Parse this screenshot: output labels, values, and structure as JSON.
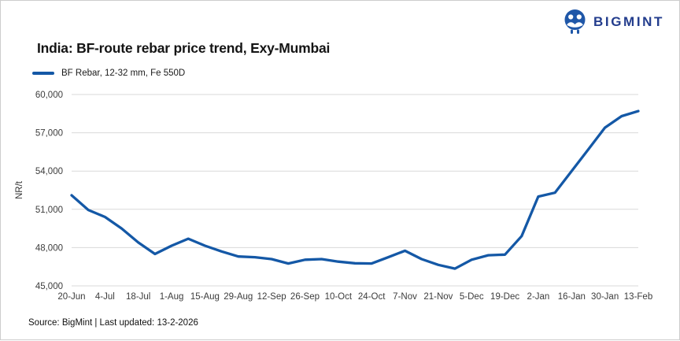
{
  "logo": {
    "text": "BIGMINT",
    "text_color": "#233d8d",
    "icon_color": "#1f57a8",
    "icon_name": "bigmint-emblem"
  },
  "header": {
    "title": "India: BF-route rebar price trend, Exy-Mumbai"
  },
  "legend": {
    "label": "BF Rebar, 12-32 mm, Fe 550D",
    "swatch_color": "#1458a6"
  },
  "footer": {
    "source_text": "Source: BigMint | Last updated: 13-2-2026"
  },
  "chart_data": {
    "type": "line",
    "title": "India: BF-route rebar price trend, Exy-Mumbai",
    "ylabel": "NR/t",
    "xlabel": "",
    "ylim": [
      45000,
      60000
    ],
    "y_ticks": [
      45000,
      48000,
      51000,
      54000,
      57000,
      60000
    ],
    "grid": "horizontal",
    "grid_color": "#d9d9d9",
    "axis_text_color": "#3c3c3c",
    "legend_position": "top-left",
    "x_tick_labels": [
      "20-Jun",
      "4-Jul",
      "18-Jul",
      "1-Aug",
      "15-Aug",
      "29-Aug",
      "12-Sep",
      "26-Sep",
      "10-Oct",
      "24-Oct",
      "7-Nov",
      "21-Nov",
      "5-Dec",
      "19-Dec",
      "2-Jan",
      "16-Jan",
      "30-Jan",
      "13-Feb"
    ],
    "series": [
      {
        "name": "BF Rebar, 12-32 mm, Fe 550D",
        "color": "#1458a6",
        "x": [
          "20-Jun",
          "27-Jun",
          "4-Jul",
          "11-Jul",
          "18-Jul",
          "25-Jul",
          "1-Aug",
          "8-Aug",
          "15-Aug",
          "22-Aug",
          "29-Aug",
          "5-Sep",
          "12-Sep",
          "19-Sep",
          "26-Sep",
          "3-Oct",
          "10-Oct",
          "17-Oct",
          "24-Oct",
          "31-Oct",
          "7-Nov",
          "14-Nov",
          "21-Nov",
          "28-Nov",
          "5-Dec",
          "12-Dec",
          "19-Dec",
          "26-Dec",
          "2-Jan",
          "9-Jan",
          "16-Jan",
          "23-Jan",
          "30-Jan",
          "6-Feb",
          "13-Feb"
        ],
        "values": [
          52100,
          50950,
          50400,
          49500,
          48400,
          47500,
          48150,
          48700,
          48150,
          47700,
          47300,
          47250,
          47100,
          46750,
          47050,
          47100,
          46900,
          46770,
          46750,
          47250,
          47750,
          47100,
          46650,
          46350,
          47050,
          47400,
          47450,
          48900,
          52000,
          52300,
          54000,
          55700,
          57400,
          58300,
          58700
        ]
      }
    ]
  }
}
